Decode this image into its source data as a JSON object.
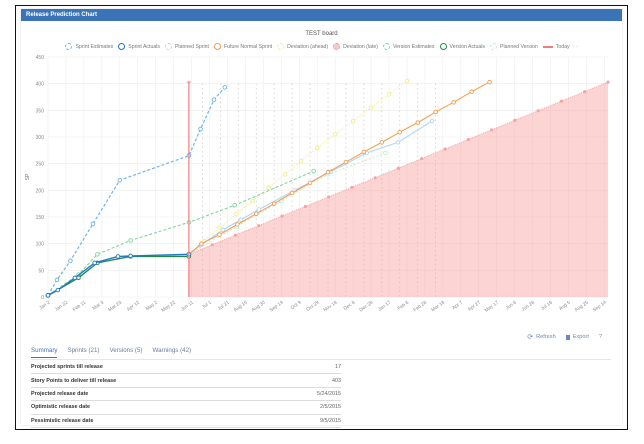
{
  "panel": {
    "title": "Release Prediction Chart"
  },
  "chart_title": "TEST board",
  "legend": [
    {
      "label": "Sprint Estimates",
      "color": "#6cb4f0",
      "style": "dashed-circle"
    },
    {
      "label": "Sprint Actuals",
      "color": "#1f78c8",
      "style": "circle"
    },
    {
      "label": "Planned Sprint",
      "color": "#b5d8f5",
      "style": "dashed-circle"
    },
    {
      "label": "Future Normal Sprint",
      "color": "#f59d4e",
      "style": "circle"
    },
    {
      "label": "Deviation (ahead)",
      "color": "#f2ec8a",
      "style": "dashed-circle"
    },
    {
      "label": "Deviation (late)",
      "color": "#f4a3a3",
      "style": "dashed-filled-circle"
    },
    {
      "label": "Version Estimates",
      "color": "#7ed69a",
      "style": "dashed-circle"
    },
    {
      "label": "Version Actuals",
      "color": "#1d8a4a",
      "style": "circle"
    },
    {
      "label": "Planned Version",
      "color": "#c2ecce",
      "style": "dashed-circle"
    },
    {
      "label": "Today",
      "color": "#f27b7b",
      "style": "line"
    }
  ],
  "chart_data": {
    "type": "line",
    "title": "TEST board",
    "xlabel": "",
    "ylabel": "SP",
    "ylim": [
      0,
      450
    ],
    "yticks": [
      0,
      50,
      100,
      150,
      200,
      250,
      300,
      350,
      400,
      450
    ],
    "grid": true,
    "legend_position": "top",
    "x_tick_labels": [
      "Jan 2",
      "Jan 22",
      "Feb 11",
      "Mar 3",
      "Mar 23",
      "Apr 12",
      "May 2",
      "May 22",
      "Jun 11",
      "Jul 1",
      "Jul 21",
      "Aug 10",
      "Aug 30",
      "Sep 19",
      "Oct 9",
      "Oct 29",
      "Nov 18",
      "Dec 8",
      "Dec 28",
      "Jan 17",
      "Feb 6",
      "Feb 26",
      "Mar 18",
      "Apr 7",
      "Apr 27",
      "May 17",
      "Jun 6",
      "Jun 26",
      "Jul 16",
      "Aug 5",
      "Aug 25",
      "Sep 14"
    ],
    "x_unit": "tick index (20-day spacing, 0 = Jan 2)",
    "today_x": 7.85,
    "series": [
      {
        "name": "Sprint Estimates",
        "points": [
          [
            0,
            3
          ],
          [
            0.5,
            32
          ],
          [
            1.25,
            68
          ],
          [
            2.5,
            137
          ],
          [
            4,
            219
          ],
          [
            7.85,
            265
          ],
          [
            8.5,
            315
          ],
          [
            9.25,
            370
          ],
          [
            9.85,
            393
          ]
        ]
      },
      {
        "name": "Sprint Actuals",
        "points": [
          [
            0,
            3
          ],
          [
            0.55,
            13
          ],
          [
            1.5,
            36
          ],
          [
            2.6,
            64
          ],
          [
            3.9,
            76
          ],
          [
            4.6,
            77
          ],
          [
            7.85,
            80
          ]
        ]
      },
      {
        "name": "Version Estimates",
        "points": [
          [
            0,
            3
          ],
          [
            1.7,
            42
          ],
          [
            2.75,
            80
          ],
          [
            4.6,
            106
          ],
          [
            7.85,
            140
          ],
          [
            10.4,
            172
          ],
          [
            14.8,
            236
          ]
        ]
      },
      {
        "name": "Version Actuals",
        "points": [
          [
            0,
            3
          ],
          [
            1.7,
            36
          ],
          [
            2.75,
            64
          ],
          [
            4.6,
            76
          ],
          [
            7.85,
            76
          ]
        ]
      },
      {
        "name": "Planned Sprint",
        "points": [
          [
            7.85,
            80
          ],
          [
            8.5,
            97
          ],
          [
            9.75,
            126
          ],
          [
            10.75,
            145
          ],
          [
            11.75,
            164
          ],
          [
            13.75,
            200
          ],
          [
            15.75,
            235
          ],
          [
            17.75,
            270
          ],
          [
            19.5,
            290
          ],
          [
            21.4,
            330
          ]
        ]
      },
      {
        "name": "Planned Version",
        "points": [
          [
            7.85,
            80
          ],
          [
            10.5,
            132
          ],
          [
            13,
            180
          ],
          [
            15.6,
            230
          ],
          [
            18.8,
            270
          ]
        ]
      },
      {
        "name": "Future Normal Sprint",
        "points": [
          [
            7.85,
            80
          ],
          [
            8.55,
            100
          ],
          [
            9.55,
            117
          ],
          [
            10.55,
            136
          ],
          [
            11.6,
            156
          ],
          [
            12.6,
            175
          ],
          [
            13.6,
            195
          ],
          [
            14.6,
            214
          ],
          [
            15.6,
            234
          ],
          [
            16.6,
            253
          ],
          [
            17.6,
            272
          ],
          [
            18.6,
            290
          ],
          [
            19.6,
            309
          ],
          [
            20.6,
            327
          ],
          [
            21.6,
            347
          ],
          [
            22.6,
            365
          ],
          [
            23.6,
            385
          ],
          [
            24.6,
            403
          ]
        ]
      },
      {
        "name": "Deviation (ahead)",
        "points": [
          [
            7.85,
            80
          ],
          [
            8.7,
            105
          ],
          [
            9.55,
            130
          ],
          [
            10.5,
            155
          ],
          [
            11.4,
            180
          ],
          [
            12.3,
            205
          ],
          [
            13.2,
            230
          ],
          [
            14.1,
            255
          ],
          [
            15.0,
            280
          ],
          [
            16.0,
            305
          ],
          [
            17.0,
            330
          ],
          [
            18.0,
            355
          ],
          [
            19.0,
            380
          ],
          [
            20.0,
            405
          ]
        ]
      },
      {
        "name": "Deviation (late)",
        "points": [
          [
            7.85,
            80
          ],
          [
            31.2,
            403
          ]
        ],
        "fill": "area"
      }
    ]
  },
  "actions": {
    "refresh": "Refresh",
    "export": "Export",
    "help": "?"
  },
  "tabs": [
    {
      "label": "Summary",
      "active": true
    },
    {
      "label": "Sprints (21)",
      "active": false
    },
    {
      "label": "Versions (5)",
      "active": false
    },
    {
      "label": "Warnings (42)",
      "active": false
    }
  ],
  "summary": [
    {
      "label": "Projected sprints till release",
      "value": "17"
    },
    {
      "label": "Story Points to deliver till release",
      "value": "403"
    },
    {
      "label": "Projected release date",
      "value": "5/24/2015"
    },
    {
      "label": "Optimistic release date",
      "value": "2/5/2015"
    },
    {
      "label": "Pessimistic release date",
      "value": "9/5/2015"
    }
  ]
}
